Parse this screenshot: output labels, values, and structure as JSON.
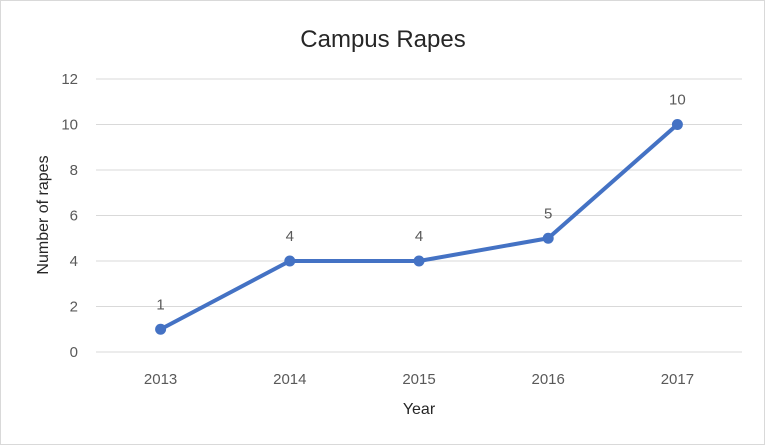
{
  "chart_data": {
    "type": "line",
    "title": "Campus Rapes",
    "xlabel": "Year",
    "ylabel": "Number of rapes",
    "categories": [
      "2013",
      "2014",
      "2015",
      "2016",
      "2017"
    ],
    "series": [
      {
        "values": [
          1,
          4,
          4,
          5,
          10
        ],
        "color": "#4472c4"
      }
    ],
    "data_labels": [
      "1",
      "4",
      "4",
      "5",
      "10"
    ],
    "ylim": [
      0,
      12
    ],
    "yticks": [
      "0",
      "2",
      "4",
      "6",
      "8",
      "10",
      "12"
    ],
    "grid": true,
    "legend": "none"
  }
}
